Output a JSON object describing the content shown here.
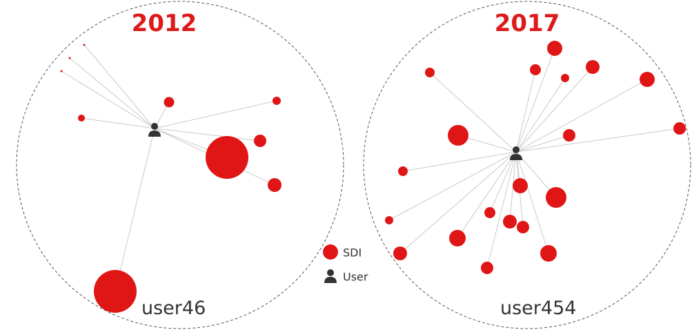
{
  "panels": [
    {
      "title": "2012",
      "user_label": "user46"
    },
    {
      "title": "2017",
      "user_label": "user454"
    }
  ],
  "legend": {
    "items": [
      "SDI",
      "User"
    ]
  }
}
